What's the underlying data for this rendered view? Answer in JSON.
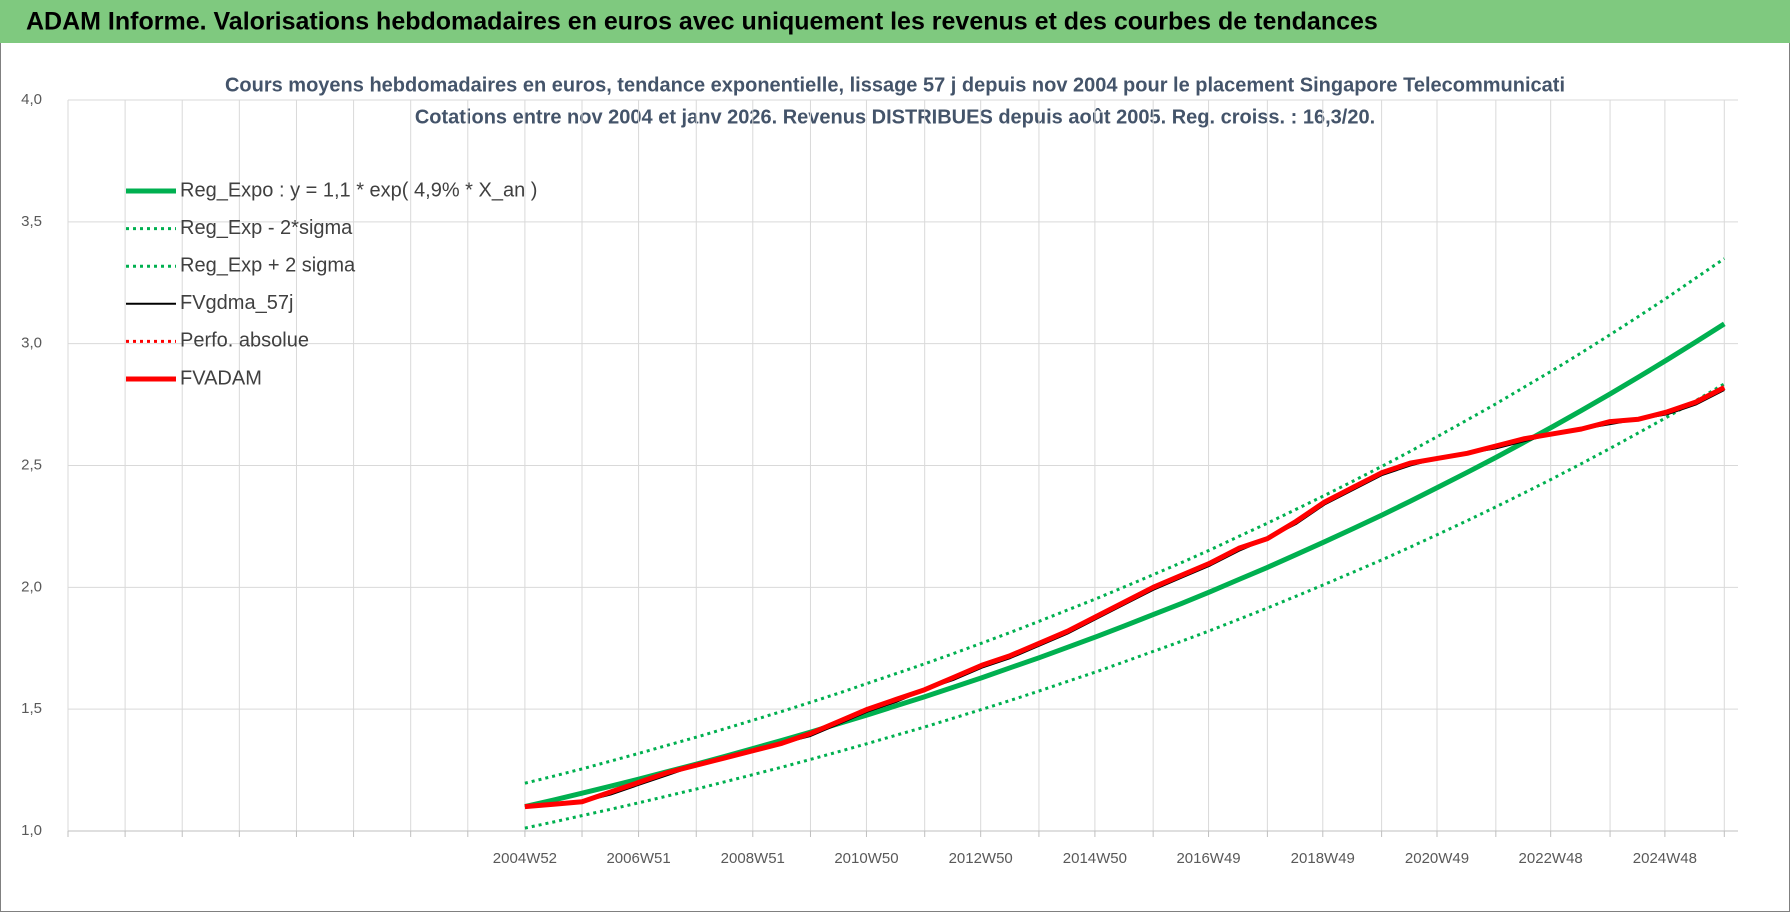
{
  "header": {
    "title": "ADAM Informe. Valorisations hebdomadaires en euros avec uniquement les revenus et des courbes de tendances"
  },
  "chart_data": {
    "type": "line",
    "title": "Cours moyens hebdomadaires en euros, tendance exponentielle, lissage 57 j depuis nov 2004  pour le placement Singapore Telecommunicati",
    "subtitle": "Cotations entre nov 2004 et janv 2026. Revenus DISTRIBUES depuis août 2005. Reg. croiss. : 16,3/20.",
    "x": [
      2004.98,
      2005.48,
      2005.98,
      2006.48,
      2006.98,
      2007.48,
      2007.98,
      2008.48,
      2008.98,
      2009.48,
      2009.98,
      2010.48,
      2010.98,
      2011.48,
      2011.98,
      2012.48,
      2012.98,
      2013.48,
      2013.98,
      2014.48,
      2014.98,
      2015.48,
      2015.98,
      2016.48,
      2016.98,
      2017.48,
      2017.98,
      2018.48,
      2018.98,
      2019.48,
      2019.98,
      2020.48,
      2020.98,
      2021.48,
      2021.98,
      2022.48,
      2022.98,
      2023.48,
      2023.98,
      2024.48,
      2024.98,
      2025.48,
      2025.98
    ],
    "xlim": [
      1996.98,
      2026.22
    ],
    "xticks": [
      {
        "value": 2004.98,
        "label": "2004W52"
      },
      {
        "value": 2006.97,
        "label": "2006W51"
      },
      {
        "value": 2008.97,
        "label": "2008W51"
      },
      {
        "value": 2010.96,
        "label": "2010W50"
      },
      {
        "value": 2012.96,
        "label": "2012W50"
      },
      {
        "value": 2014.96,
        "label": "2014W50"
      },
      {
        "value": 2016.95,
        "label": "2016W49"
      },
      {
        "value": 2018.95,
        "label": "2018W49"
      },
      {
        "value": 2020.95,
        "label": "2020W49"
      },
      {
        "value": 2022.94,
        "label": "2022W48"
      },
      {
        "value": 2024.94,
        "label": "2024W48"
      }
    ],
    "xminorticks": [
      1996.98,
      1997.98,
      1998.98,
      1999.98,
      2000.98,
      2001.98,
      2002.98,
      2003.98,
      2005.98,
      2007.98,
      2009.98,
      2011.98,
      2013.98,
      2015.98,
      2017.98,
      2019.98,
      2021.98,
      2023.98,
      2025.98
    ],
    "ylim": [
      1,
      4
    ],
    "yticks": [
      {
        "value": 1,
        "label": "1,0"
      },
      {
        "value": 1.5,
        "label": "1,5"
      },
      {
        "value": 2,
        "label": "2,0"
      },
      {
        "value": 2.5,
        "label": "2,5"
      },
      {
        "value": 3,
        "label": "3,0"
      },
      {
        "value": 3.5,
        "label": "3,5"
      },
      {
        "value": 4,
        "label": "4,0"
      }
    ],
    "grid": true,
    "legend": "top-left",
    "series": [
      {
        "name": "Reg_Expo : y = 1,1 * exp( 4,9% *  X_an )",
        "color": "#00b050",
        "style": "thick",
        "values": [
          1.1,
          1.127,
          1.155,
          1.184,
          1.213,
          1.244,
          1.274,
          1.306,
          1.339,
          1.372,
          1.406,
          1.441,
          1.477,
          1.514,
          1.551,
          1.59,
          1.629,
          1.67,
          1.711,
          1.754,
          1.797,
          1.842,
          1.888,
          1.934,
          1.982,
          2.032,
          2.082,
          2.134,
          2.187,
          2.241,
          2.296,
          2.353,
          2.412,
          2.472,
          2.533,
          2.596,
          2.66,
          2.726,
          2.794,
          2.863,
          2.934,
          3.007,
          3.081
        ]
      },
      {
        "name": "Reg_Exp - 2*sigma",
        "color": "#00b050",
        "style": "dotted",
        "values": [
          1.012,
          1.037,
          1.063,
          1.089,
          1.116,
          1.144,
          1.172,
          1.202,
          1.232,
          1.262,
          1.294,
          1.326,
          1.359,
          1.393,
          1.427,
          1.463,
          1.499,
          1.536,
          1.574,
          1.614,
          1.653,
          1.695,
          1.737,
          1.779,
          1.823,
          1.869,
          1.915,
          1.963,
          2.012,
          2.062,
          2.112,
          2.165,
          2.219,
          2.274,
          2.33,
          2.388,
          2.447,
          2.508,
          2.57,
          2.634,
          2.699,
          2.766,
          2.835
        ]
      },
      {
        "name": "Reg_Exp + 2 sigma",
        "color": "#00b050",
        "style": "dotted",
        "values": [
          1.196,
          1.225,
          1.255,
          1.287,
          1.319,
          1.352,
          1.385,
          1.42,
          1.455,
          1.491,
          1.528,
          1.566,
          1.606,
          1.646,
          1.686,
          1.728,
          1.771,
          1.815,
          1.86,
          1.907,
          1.953,
          2.002,
          2.052,
          2.102,
          2.154,
          2.209,
          2.263,
          2.32,
          2.377,
          2.436,
          2.496,
          2.558,
          2.622,
          2.687,
          2.753,
          2.822,
          2.891,
          2.963,
          3.037,
          3.112,
          3.189,
          3.269,
          3.349
        ]
      },
      {
        "name": "FVgdma_57j",
        "color": "#000000",
        "style": "thin",
        "values": [
          1.1,
          1.11,
          1.12,
          1.15,
          1.19,
          1.23,
          1.27,
          1.3,
          1.33,
          1.36,
          1.39,
          1.44,
          1.49,
          1.53,
          1.58,
          1.62,
          1.67,
          1.71,
          1.76,
          1.81,
          1.87,
          1.93,
          1.99,
          2.04,
          2.09,
          2.15,
          2.2,
          2.26,
          2.34,
          2.4,
          2.46,
          2.5,
          2.53,
          2.55,
          2.57,
          2.6,
          2.63,
          2.65,
          2.67,
          2.69,
          2.71,
          2.75,
          2.81
        ]
      },
      {
        "name": "Perfo. absolue",
        "color": "#ff0000",
        "style": "dotted",
        "values": [
          1.1,
          1.11,
          1.12,
          1.16,
          1.2,
          1.24,
          1.27,
          1.3,
          1.33,
          1.36,
          1.4,
          1.45,
          1.5,
          1.54,
          1.58,
          1.63,
          1.68,
          1.72,
          1.77,
          1.82,
          1.88,
          1.94,
          2.0,
          2.05,
          2.1,
          2.16,
          2.2,
          2.27,
          2.35,
          2.41,
          2.47,
          2.51,
          2.53,
          2.55,
          2.58,
          2.61,
          2.63,
          2.65,
          2.68,
          2.69,
          2.72,
          2.76,
          2.82
        ]
      },
      {
        "name": "FVADAM",
        "color": "#ff0000",
        "style": "thick",
        "values": [
          1.1,
          1.11,
          1.12,
          1.16,
          1.2,
          1.24,
          1.27,
          1.3,
          1.33,
          1.36,
          1.4,
          1.45,
          1.5,
          1.54,
          1.58,
          1.63,
          1.68,
          1.72,
          1.77,
          1.82,
          1.88,
          1.94,
          2.0,
          2.05,
          2.1,
          2.16,
          2.2,
          2.27,
          2.35,
          2.41,
          2.47,
          2.51,
          2.53,
          2.55,
          2.58,
          2.61,
          2.63,
          2.65,
          2.68,
          2.69,
          2.72,
          2.76,
          2.82
        ]
      }
    ]
  }
}
